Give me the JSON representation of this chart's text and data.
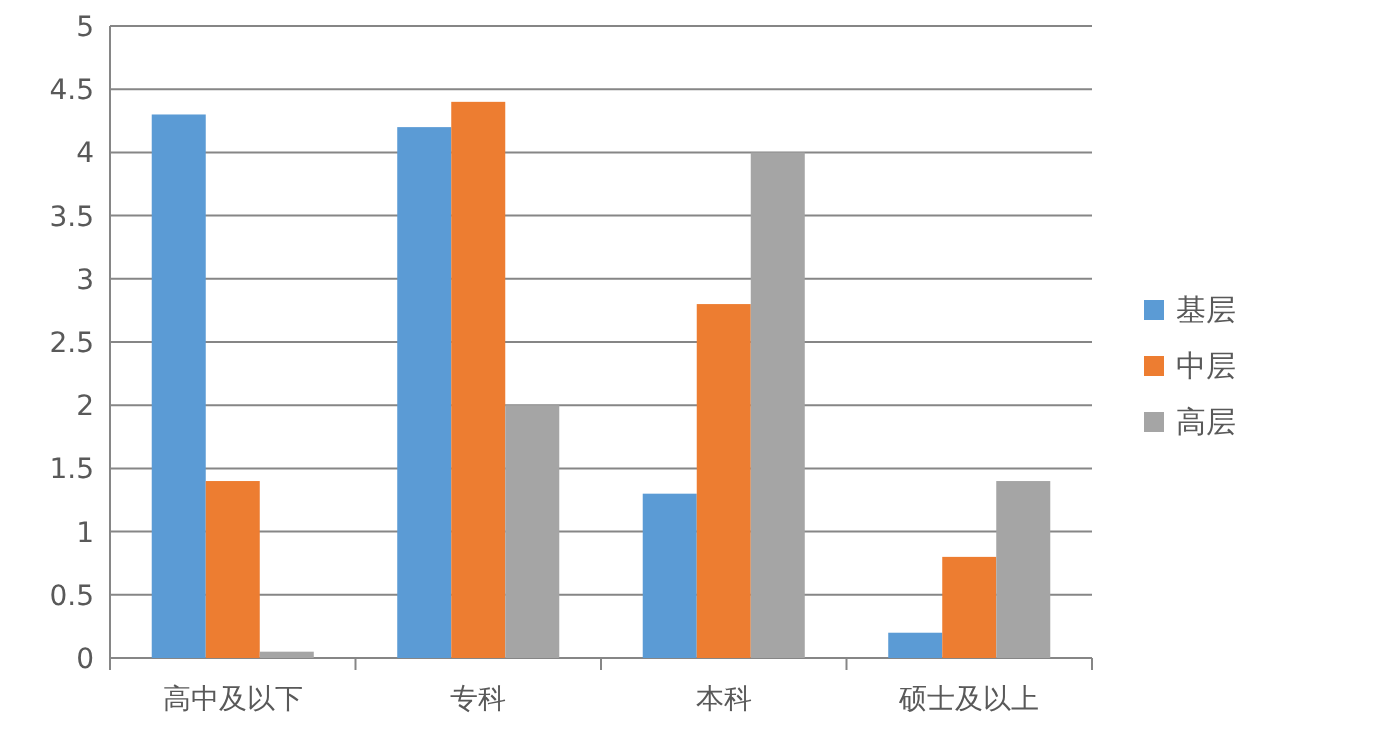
{
  "chart_data": {
    "type": "bar",
    "categories": [
      "高中及以下",
      "专科",
      "本科",
      "硕士及以上"
    ],
    "series": [
      {
        "name": "基层",
        "color": "#5b9bd5",
        "values": [
          4.3,
          4.2,
          1.3,
          0.2
        ]
      },
      {
        "name": "中层",
        "color": "#ed7d31",
        "values": [
          1.4,
          4.4,
          2.8,
          0.8
        ]
      },
      {
        "name": "高层",
        "color": "#a5a5a5",
        "values": [
          0.05,
          2.0,
          4.0,
          1.4
        ]
      }
    ],
    "ylim": [
      0,
      5
    ],
    "yticks": [
      0,
      0.5,
      1,
      1.5,
      2,
      2.5,
      3,
      3.5,
      4,
      4.5,
      5
    ],
    "grid": "y",
    "legend": "right"
  }
}
